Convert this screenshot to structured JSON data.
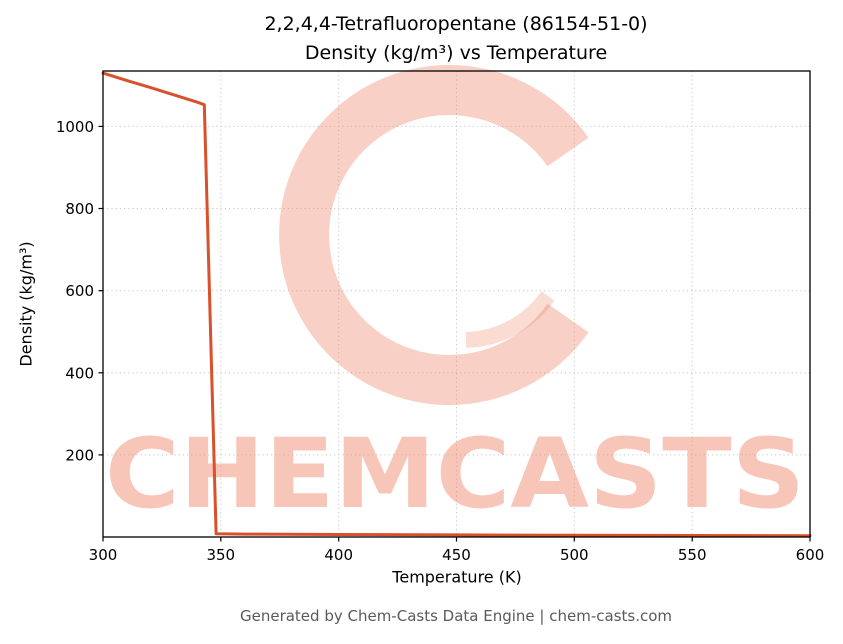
{
  "chart_data": {
    "type": "line",
    "title": "2,2,4,4-Tetrafluoropentane (86154-51-0)\nDensity (kg/m³) vs Temperature",
    "title_lines": [
      "2,2,4,4-Tetrafluoropentane (86154-51-0)",
      "Density (kg/m³) vs Temperature"
    ],
    "xlabel": "Temperature (K)",
    "ylabel": "Density (kg/m³)",
    "xlim": [
      300,
      600
    ],
    "ylim": [
      0,
      1135
    ],
    "xticks": [
      300,
      350,
      400,
      450,
      500,
      550,
      600
    ],
    "yticks": [
      200,
      400,
      600,
      800,
      1000
    ],
    "grid": true,
    "legend": false,
    "line_color": "#d9512c",
    "series": [
      {
        "name": "Density",
        "x": [
          300,
          310,
          320,
          330,
          340,
          343,
          348,
          360,
          400,
          450,
          500,
          550,
          600
        ],
        "y": [
          1130,
          1112,
          1095,
          1077,
          1059,
          1053,
          8,
          7,
          6,
          5,
          4.2,
          3.6,
          3.2
        ]
      }
    ]
  },
  "watermark": {
    "text": "CHEMCASTS",
    "color": "#ef8a6d"
  },
  "footer": {
    "text": "Generated by Chem-Casts Data Engine | chem-casts.com"
  }
}
